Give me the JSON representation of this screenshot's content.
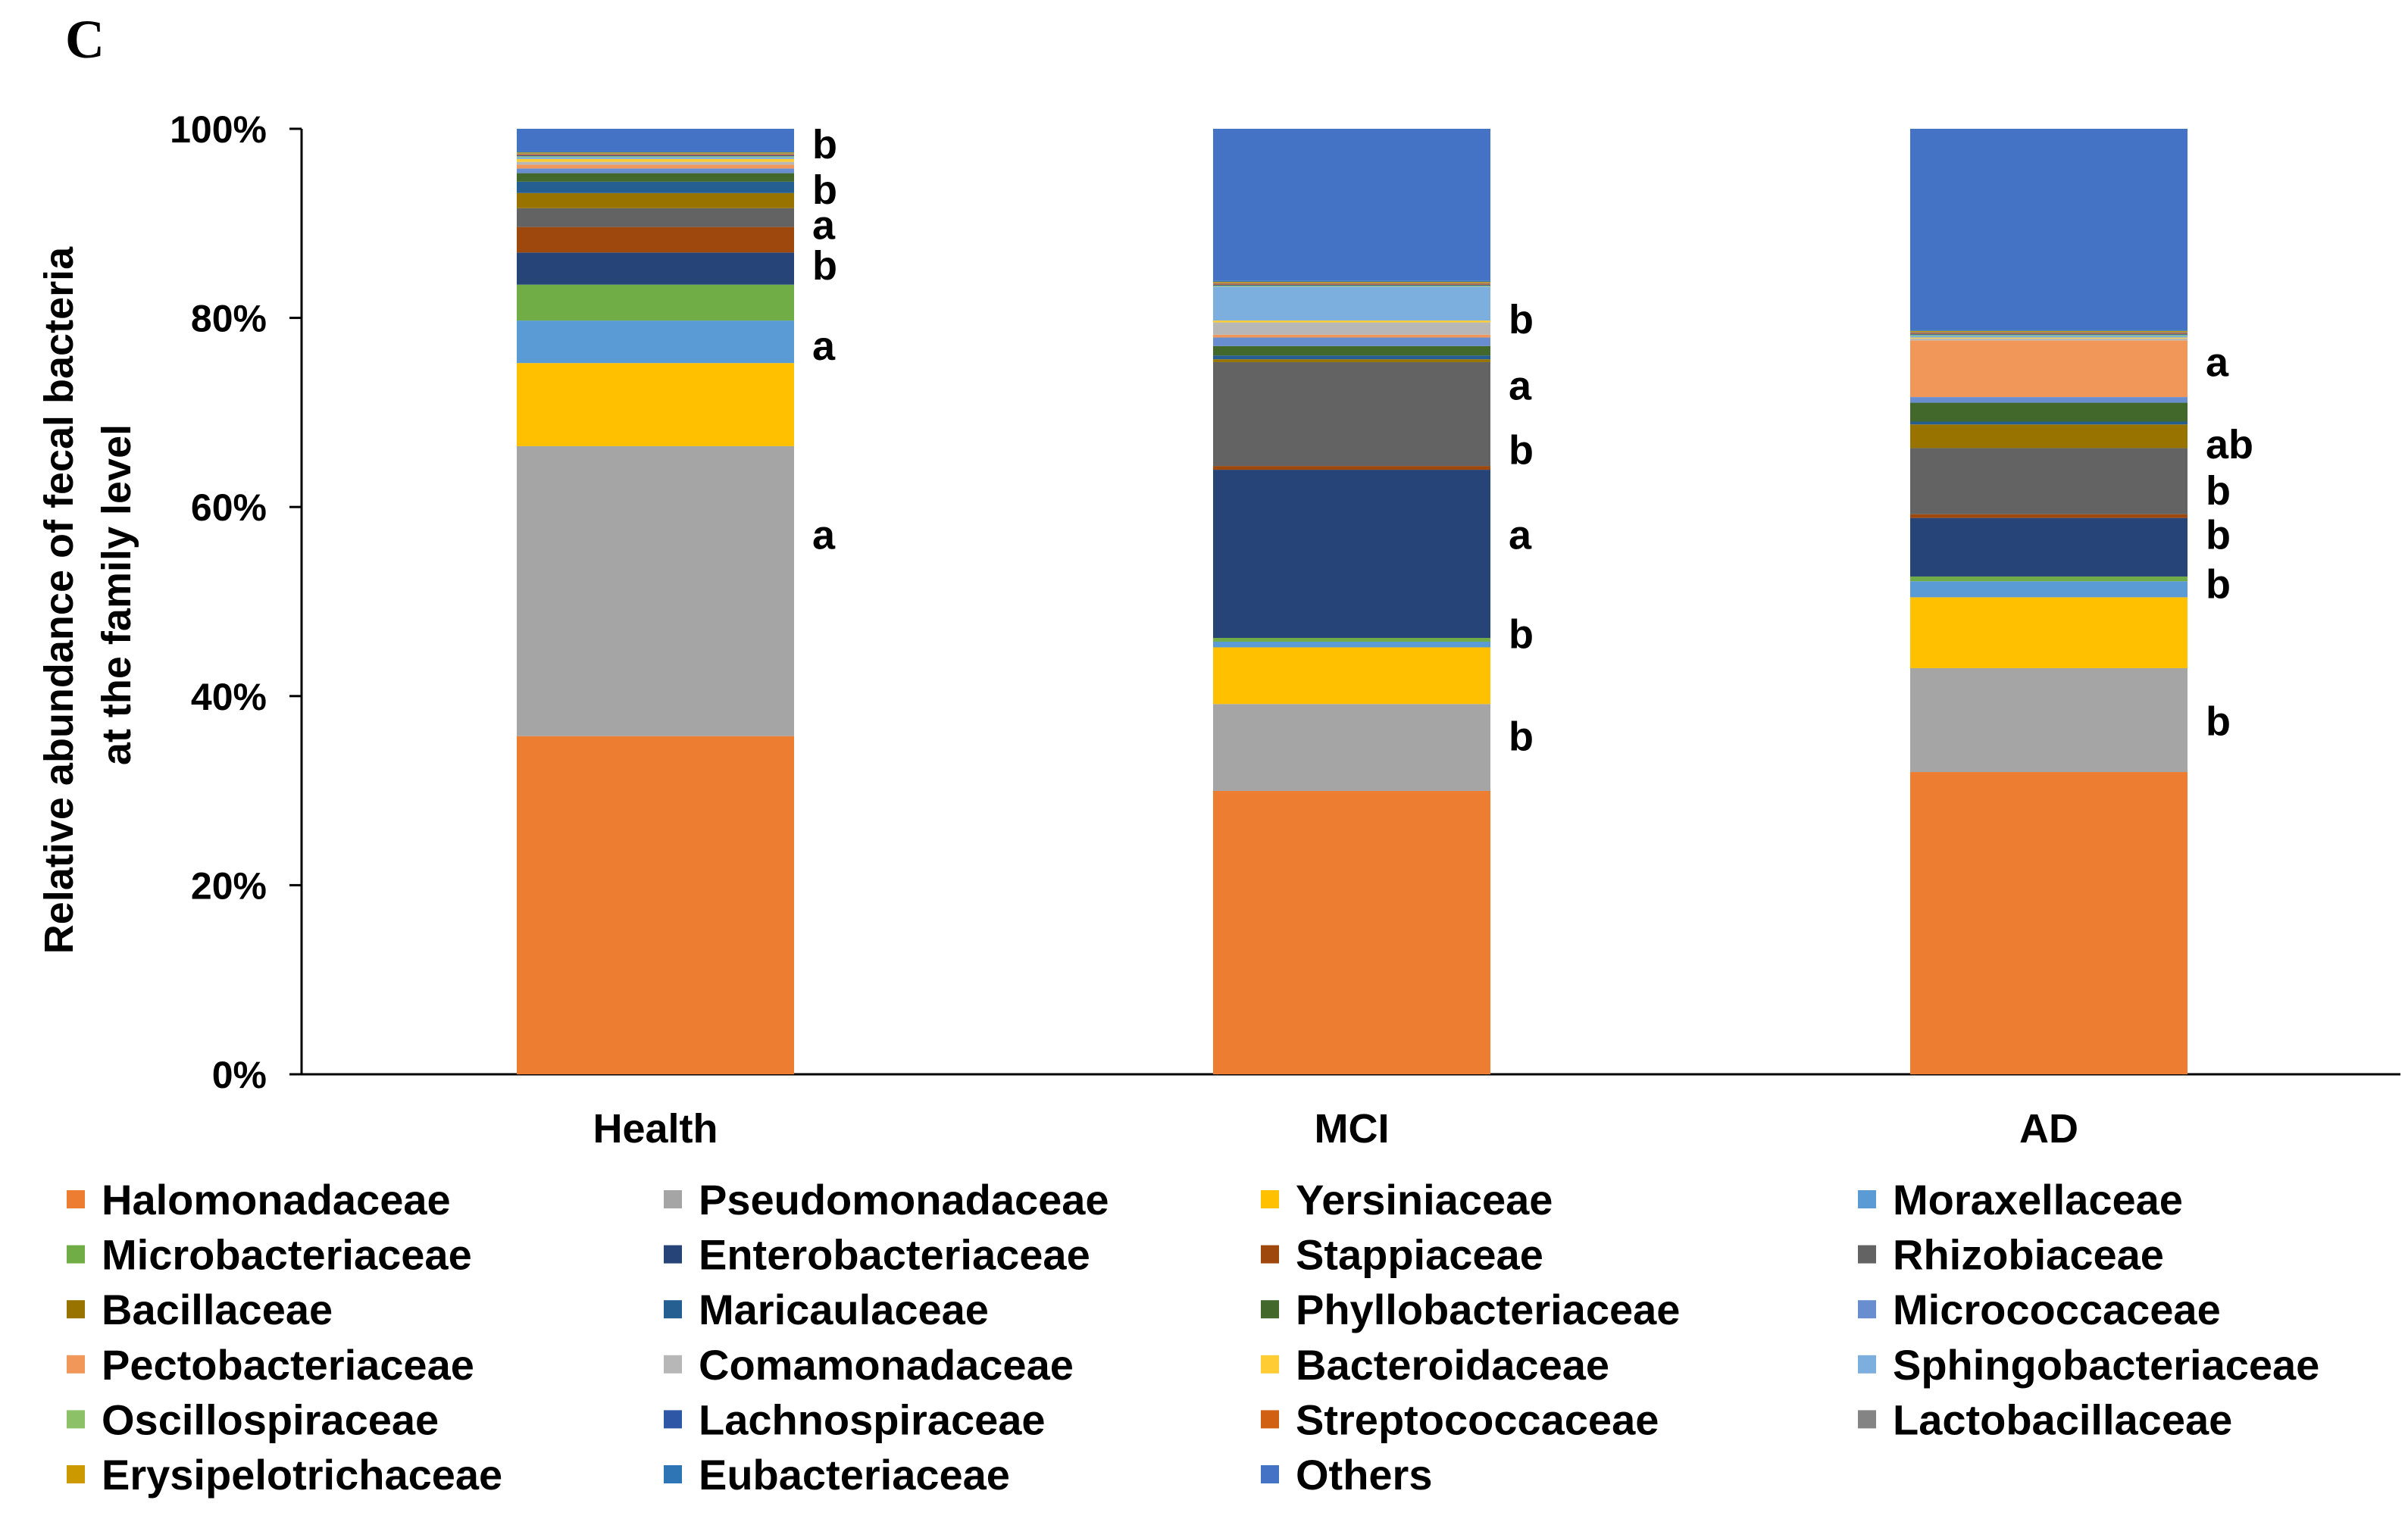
{
  "panel_label": "C",
  "chart_data": {
    "type": "bar",
    "stacked": true,
    "title": "",
    "xlabel": "",
    "ylabel": "Relative abundance of fecal bacteria\nat the family level",
    "ylim": [
      0,
      100
    ],
    "yticks": [
      "0%",
      "20%",
      "40%",
      "60%",
      "80%",
      "100%"
    ],
    "categories": [
      "Health",
      "MCI",
      "AD"
    ],
    "legend_position": "bottom",
    "series": [
      {
        "name": "Halomonadaceae",
        "color": "#ED7D31",
        "values": [
          35.8,
          30.0,
          32.0
        ]
      },
      {
        "name": "Pseudomonadaceae",
        "color": "#A5A5A5",
        "values": [
          30.7,
          9.2,
          11.0
        ]
      },
      {
        "name": "Yersiniaceae",
        "color": "#FFC000",
        "values": [
          8.8,
          6.0,
          7.5
        ]
      },
      {
        "name": "Moraxellaceae",
        "color": "#5B9BD5",
        "values": [
          4.5,
          0.6,
          1.7
        ]
      },
      {
        "name": "Microbacteriaceae",
        "color": "#70AD47",
        "values": [
          3.8,
          0.4,
          0.5
        ]
      },
      {
        "name": "Enterobacteriaceae",
        "color": "#264478",
        "values": [
          3.4,
          17.8,
          6.2
        ]
      },
      {
        "name": "Stappiaceae",
        "color": "#9E480E",
        "values": [
          2.7,
          0.4,
          0.4
        ]
      },
      {
        "name": "Rhizobiaceae",
        "color": "#636363",
        "values": [
          2.0,
          11.0,
          7.0
        ]
      },
      {
        "name": "Bacillaceae",
        "color": "#997300",
        "values": [
          1.6,
          0.3,
          2.5
        ]
      },
      {
        "name": "Maricaulaceae",
        "color": "#255E91",
        "values": [
          1.2,
          0.4,
          0.3
        ]
      },
      {
        "name": "Phyllobacteriaceae",
        "color": "#43682B",
        "values": [
          0.9,
          1.0,
          2.0
        ]
      },
      {
        "name": "Micrococcaceae",
        "color": "#698ED0",
        "values": [
          0.5,
          0.9,
          0.6
        ]
      },
      {
        "name": "Pectobacteriaceae",
        "color": "#F1975A",
        "values": [
          0.4,
          0.3,
          6.0
        ]
      },
      {
        "name": "Comamonadaceae",
        "color": "#B7B7B7",
        "values": [
          0.3,
          1.3,
          0.2
        ]
      },
      {
        "name": "Bacteroidaceae",
        "color": "#FFCD33",
        "values": [
          0.3,
          0.2,
          0.1
        ]
      },
      {
        "name": "Sphingobacteriaceae",
        "color": "#7CAFDD",
        "values": [
          0.2,
          3.6,
          0.2
        ]
      },
      {
        "name": "Oscillospiraceae",
        "color": "#8CC168",
        "values": [
          0.1,
          0.1,
          0.1
        ]
      },
      {
        "name": "Lachnospiraceae",
        "color": "#2E57A5",
        "values": [
          0.1,
          0.1,
          0.1
        ]
      },
      {
        "name": "Streptococcaceae",
        "color": "#D26012",
        "values": [
          0.1,
          0.1,
          0.1
        ]
      },
      {
        "name": "Lactobacillaceae",
        "color": "#848484",
        "values": [
          0.1,
          0.1,
          0.1
        ]
      },
      {
        "name": "Erysipelotrichaceae",
        "color": "#CC9A00",
        "values": [
          0.1,
          0.1,
          0.1
        ]
      },
      {
        "name": "Eubacteriaceae",
        "color": "#2E75B6",
        "values": [
          0.1,
          0.1,
          0.1
        ]
      },
      {
        "name": "Others",
        "color": "#4472C4",
        "values": [
          2.4,
          16.1,
          21.3
        ]
      }
    ],
    "annotations": [
      {
        "category": "Health",
        "labels": [
          {
            "text": "b",
            "y": 98.3
          },
          {
            "text": "b",
            "y": 93.5
          },
          {
            "text": "a",
            "y": 89.8
          },
          {
            "text": "b",
            "y": 85.5
          },
          {
            "text": "a",
            "y": 77.0
          },
          {
            "text": "a",
            "y": 57.0
          }
        ]
      },
      {
        "category": "MCI",
        "labels": [
          {
            "text": "b",
            "y": 79.8
          },
          {
            "text": "a",
            "y": 72.8
          },
          {
            "text": "b",
            "y": 66.0
          },
          {
            "text": "a",
            "y": 57.0
          },
          {
            "text": "b",
            "y": 46.5
          },
          {
            "text": "b",
            "y": 35.7
          }
        ]
      },
      {
        "category": "AD",
        "labels": [
          {
            "text": "a",
            "y": 75.3
          },
          {
            "text": "ab",
            "y": 66.6
          },
          {
            "text": "b",
            "y": 61.7
          },
          {
            "text": "b",
            "y": 57.0
          },
          {
            "text": "b",
            "y": 51.8
          },
          {
            "text": "b",
            "y": 37.3
          }
        ]
      }
    ]
  }
}
